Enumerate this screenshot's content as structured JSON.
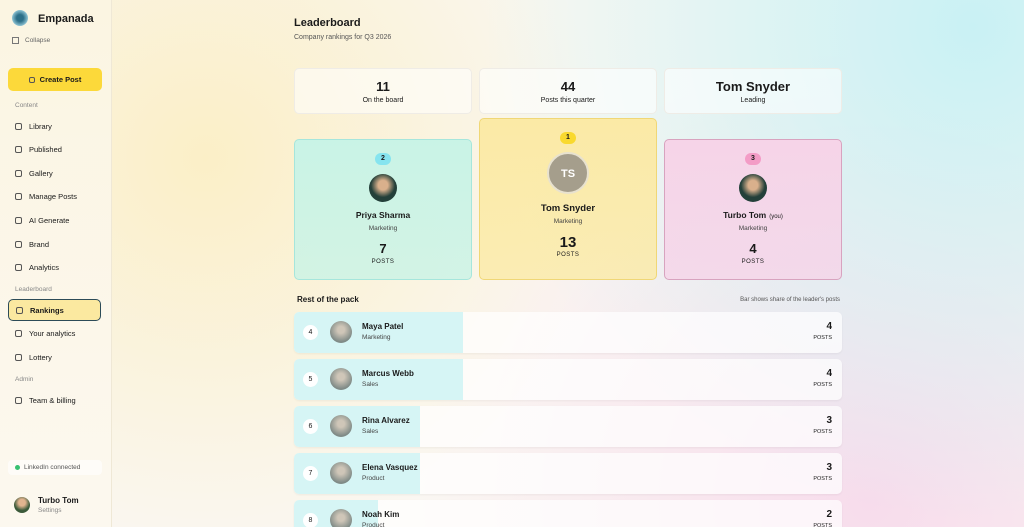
{
  "sidebar": {
    "brand": "Empanada",
    "collapse": "Collapse",
    "create_post": "Create Post",
    "sections": [
      {
        "title": "Content",
        "items": [
          {
            "label": "Library"
          },
          {
            "label": "Published"
          },
          {
            "label": "Gallery"
          },
          {
            "label": "Manage Posts"
          },
          {
            "label": "AI Generate"
          },
          {
            "label": "Brand"
          },
          {
            "label": "Analytics"
          }
        ]
      },
      {
        "title": "Leaderboard",
        "items": [
          {
            "label": "Rankings",
            "active": true
          },
          {
            "label": "Your analytics"
          },
          {
            "label": "Lottery"
          }
        ]
      },
      {
        "title": "Admin",
        "items": [
          {
            "label": "Team & billing"
          }
        ]
      }
    ],
    "status": "LinkedIn connected",
    "user": {
      "name": "Turbo Tom",
      "sub": "Settings"
    }
  },
  "header": {
    "title": "Leaderboard",
    "subtitle": "Company rankings for Q3 2026"
  },
  "stats": [
    {
      "value": 11,
      "label": "On the board"
    },
    {
      "value": 44,
      "label": "Posts this quarter"
    },
    {
      "value": "Tom Snyder",
      "label": "Leading"
    }
  ],
  "posts_unit": "POSTS",
  "podium": [
    {
      "rank": 2,
      "name": "Priya Sharma",
      "team": "Marketing",
      "posts": 7
    },
    {
      "rank": 1,
      "name": "Tom Snyder",
      "initials": "TS",
      "team": "Marketing",
      "posts": 13
    },
    {
      "rank": 3,
      "name": "Turbo Tom",
      "you_tag": "(you)",
      "team": "Marketing",
      "posts": 4
    }
  ],
  "rest": {
    "title": "Rest of the pack",
    "note": "Bar shows share of the leader's posts",
    "rows": [
      {
        "rank": 4,
        "name": "Maya Patel",
        "team": "Marketing",
        "posts": 4
      },
      {
        "rank": 5,
        "name": "Marcus Webb",
        "team": "Sales",
        "posts": 4
      },
      {
        "rank": 6,
        "name": "Rina Alvarez",
        "team": "Sales",
        "posts": 3
      },
      {
        "rank": 7,
        "name": "Elena Vasquez",
        "team": "Product",
        "posts": 3
      },
      {
        "rank": 8,
        "name": "Noah Kim",
        "team": "Product",
        "posts": 2
      }
    ]
  }
}
